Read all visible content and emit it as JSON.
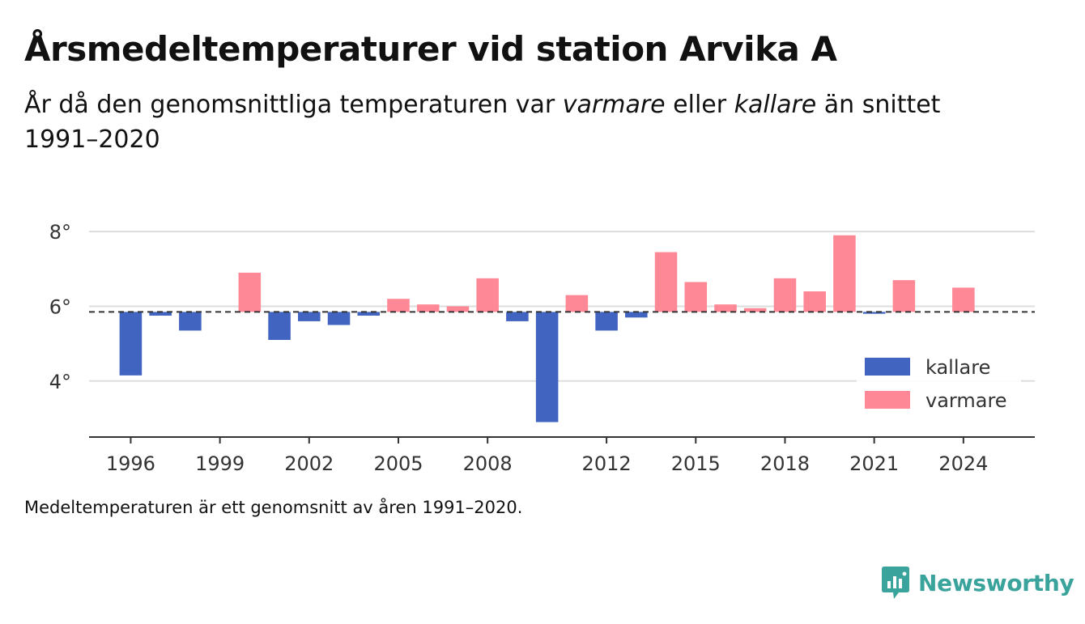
{
  "header": {
    "title": "Årsmedeltemperaturer vid station Arvika A",
    "subtitle_parts": [
      "År då den genomsnittliga temperaturen var ",
      "varmare",
      " eller ",
      "kallare",
      " än snittet 1991–2020"
    ]
  },
  "footer": {
    "note": "Medeltemperaturen är ett genomsnitt av åren 1991–2020.",
    "brand": "Newsworthy"
  },
  "colors": {
    "kallare": "#4164c1",
    "varmare": "#ff8897",
    "baseline": "#333333",
    "grid": "#dddddd",
    "axis": "#333333",
    "text": "#333333",
    "brand": "#3aa39b"
  },
  "chart_data": {
    "type": "bar",
    "baseline": 5.85,
    "ylim": [
      2.5,
      9.0
    ],
    "yticks": [
      4,
      6,
      8
    ],
    "ytick_suffix": "°",
    "xlim": [
      1994.6,
      2026.4
    ],
    "xticks": [
      1996,
      1999,
      2002,
      2005,
      2008,
      2012,
      2015,
      2018,
      2021,
      2024
    ],
    "grid": true,
    "legend_position": "bottom-right",
    "legend": [
      {
        "key": "kallare",
        "label": "kallare"
      },
      {
        "key": "varmare",
        "label": "varmare"
      }
    ],
    "x": [
      1996,
      1997,
      1998,
      1999,
      2000,
      2001,
      2002,
      2003,
      2004,
      2005,
      2006,
      2007,
      2008,
      2009,
      2010,
      2011,
      2012,
      2013,
      2014,
      2015,
      2016,
      2017,
      2018,
      2019,
      2020,
      2021,
      2022,
      2023,
      2024
    ],
    "values": [
      4.15,
      5.75,
      5.35,
      null,
      6.9,
      5.1,
      5.6,
      5.5,
      5.75,
      6.2,
      6.05,
      6.0,
      6.75,
      5.6,
      2.9,
      6.3,
      5.35,
      5.7,
      7.45,
      6.65,
      6.05,
      5.95,
      6.75,
      6.4,
      7.9,
      5.8,
      6.7,
      null,
      6.5
    ]
  }
}
